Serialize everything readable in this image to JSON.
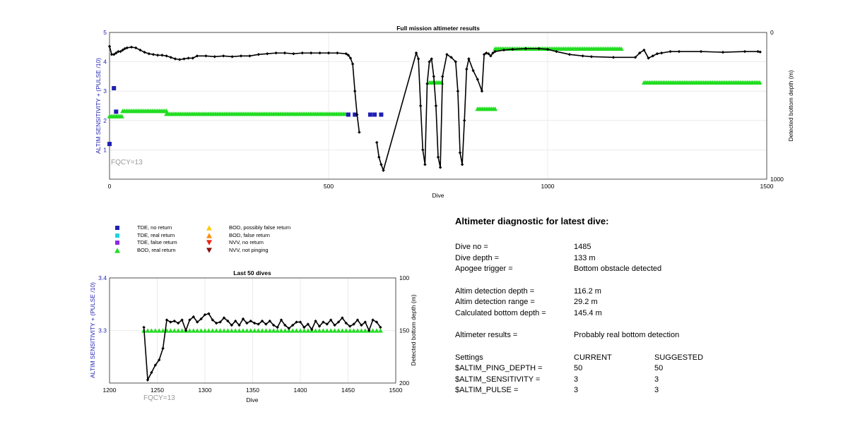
{
  "chart_data": [
    {
      "type": "scatter",
      "title": "Full mission altimeter results",
      "xlabel": "Dive",
      "ylabel": "ALTIM SENSITIVITY + (PULSE /10)",
      "y2label": "Detected bottom depth (m)",
      "xlim": [
        0,
        1500
      ],
      "ylim": [
        0,
        5
      ],
      "y2lim": [
        0,
        1000
      ],
      "y2_reversed": true,
      "xticks": [
        "0",
        "500",
        "1000",
        "1500"
      ],
      "yticks": [
        "1",
        "2",
        "3",
        "4",
        "5"
      ],
      "y2ticks": [
        "0",
        "1000"
      ],
      "grid": true,
      "annotation": "FQCY=13",
      "depth_series": {
        "name": "Detected bottom depth",
        "x": [
          0,
          5,
          10,
          15,
          20,
          25,
          30,
          35,
          40,
          50,
          60,
          70,
          80,
          90,
          100,
          110,
          120,
          130,
          140,
          150,
          160,
          170,
          180,
          190,
          200,
          220,
          240,
          260,
          280,
          300,
          320,
          340,
          360,
          380,
          400,
          420,
          440,
          460,
          480,
          500,
          520,
          540,
          545,
          550,
          555,
          560,
          565,
          570
        ],
        "y": [
          95,
          150,
          150,
          140,
          130,
          130,
          120,
          110,
          105,
          100,
          105,
          120,
          135,
          145,
          150,
          155,
          155,
          160,
          170,
          180,
          185,
          180,
          175,
          175,
          160,
          160,
          165,
          160,
          165,
          160,
          160,
          150,
          145,
          140,
          140,
          145,
          140,
          140,
          140,
          140,
          140,
          145,
          155,
          175,
          215,
          400,
          560,
          680
        ]
      },
      "depth_series_2": {
        "x": [
          610,
          615,
          620,
          625,
          700,
          705,
          710,
          715,
          720,
          725,
          730,
          735,
          740,
          745,
          750,
          755,
          760,
          770,
          780,
          790,
          795,
          800,
          805,
          810,
          815,
          820,
          830,
          840,
          850,
          855,
          860,
          865,
          870,
          875,
          880,
          900,
          920,
          950,
          980,
          1000,
          1020,
          1050,
          1080,
          1100,
          1150,
          1200,
          1210,
          1220,
          1230,
          1240,
          1250,
          1260,
          1280,
          1300,
          1350,
          1400,
          1450,
          1480,
          1485
        ],
        "y": [
          750,
          850,
          900,
          940,
          140,
          180,
          500,
          800,
          900,
          350,
          200,
          180,
          300,
          500,
          850,
          920,
          300,
          150,
          170,
          200,
          400,
          820,
          900,
          600,
          250,
          180,
          260,
          320,
          400,
          150,
          140,
          145,
          160,
          140,
          130,
          120,
          115,
          110,
          110,
          115,
          130,
          150,
          160,
          165,
          170,
          170,
          140,
          120,
          175,
          160,
          145,
          140,
          130,
          130,
          130,
          135,
          130,
          130,
          133
        ]
      },
      "bod_real_bands": [
        {
          "x_start": 0,
          "x_end": 30,
          "y": 2.15
        },
        {
          "x_start": 30,
          "x_end": 130,
          "y": 2.33
        },
        {
          "x_start": 130,
          "x_end": 540,
          "y": 2.23
        },
        {
          "x_start": 730,
          "x_end": 760,
          "y": 3.3
        },
        {
          "x_start": 840,
          "x_end": 880,
          "y": 2.4
        },
        {
          "x_start": 880,
          "x_end": 1170,
          "y": 4.45
        },
        {
          "x_start": 1220,
          "x_end": 1485,
          "y": 3.3
        }
      ],
      "tde_no_return": [
        {
          "x": 10,
          "y": 3.1
        },
        {
          "x": 15,
          "y": 2.3
        },
        {
          "x": 0,
          "y": 1.2
        },
        {
          "x": 545,
          "y": 2.2
        },
        {
          "x": 560,
          "y": 2.2
        },
        {
          "x": 595,
          "y": 2.2
        },
        {
          "x": 605,
          "y": 2.2
        },
        {
          "x": 620,
          "y": 2.2
        }
      ]
    },
    {
      "type": "line",
      "title": "Last 50 dives",
      "xlabel": "Dive",
      "ylabel": "ALTIM SENSITIVITY + (PULSE /10)",
      "y2label": "Detected bottom depth (m)",
      "xlim": [
        1200,
        1500
      ],
      "ylim": [
        3.2,
        3.4
      ],
      "y2lim": [
        100,
        200
      ],
      "y2_reversed": true,
      "xticks": [
        "1200",
        "1250",
        "1300",
        "1350",
        "1400",
        "1450",
        "1500"
      ],
      "yticks": [
        "3.3",
        "3.4"
      ],
      "y2ticks": [
        "100",
        "150",
        "200"
      ],
      "grid": true,
      "annotation": "FQCY=13",
      "depth": {
        "x": [
          1236,
          1240,
          1244,
          1248,
          1252,
          1256,
          1260,
          1264,
          1268,
          1272,
          1276,
          1280,
          1284,
          1288,
          1292,
          1296,
          1300,
          1304,
          1308,
          1312,
          1316,
          1320,
          1324,
          1328,
          1332,
          1336,
          1340,
          1344,
          1348,
          1352,
          1356,
          1360,
          1364,
          1368,
          1372,
          1376,
          1380,
          1384,
          1388,
          1392,
          1396,
          1400,
          1404,
          1408,
          1412,
          1416,
          1420,
          1424,
          1428,
          1432,
          1436,
          1440,
          1444,
          1448,
          1452,
          1456,
          1460,
          1464,
          1468,
          1472,
          1476,
          1480,
          1484
        ],
        "y": [
          147,
          197,
          190,
          183,
          178,
          167,
          140,
          142,
          141,
          143,
          140,
          150,
          140,
          137,
          142,
          139,
          135,
          134,
          140,
          143,
          142,
          138,
          141,
          145,
          141,
          145,
          139,
          143,
          141,
          143,
          144,
          141,
          144,
          141,
          145,
          147,
          140,
          145,
          148,
          145,
          142,
          142,
          147,
          144,
          149,
          141,
          146,
          142,
          144,
          140,
          145,
          142,
          138,
          143,
          146,
          144,
          140,
          145,
          142,
          150,
          140,
          142,
          147
        ]
      },
      "bod_real": {
        "x_start": 1236,
        "x_end": 1484,
        "step": 4,
        "y": 3.3
      },
      "bod_possibly_false": [
        {
          "x": 1430,
          "y": 3.3
        }
      ]
    }
  ],
  "legend": {
    "items": [
      {
        "label": "TDE, no return",
        "shape": "square",
        "color": "#1f1fb3"
      },
      {
        "label": "TDE, real return",
        "shape": "square",
        "color": "#22d3e0"
      },
      {
        "label": "TDE, false return",
        "shape": "square",
        "color": "#8a2be2"
      },
      {
        "label": "BOD, real return",
        "shape": "triangle-up",
        "color": "#22dd22"
      },
      {
        "label": "BOD, possibly false return",
        "shape": "triangle-up",
        "color": "#ffcc00"
      },
      {
        "label": "BOD, false return",
        "shape": "triangle-up",
        "color": "#ff8c00"
      },
      {
        "label": "NVV, no return",
        "shape": "triangle-down",
        "color": "#ee2211"
      },
      {
        "label": "NVV, not pinging",
        "shape": "triangle-down",
        "color": "#8b1010"
      }
    ]
  },
  "diagnostic": {
    "title": "Altimeter diagnostic for latest dive:",
    "dive_no_label": "Dive no =",
    "dive_no_value": "1485",
    "dive_depth_label": "Dive depth =",
    "dive_depth_value": "133 m",
    "apogee_label": "Apogee trigger =",
    "apogee_value": "Bottom obstacle detected",
    "altim_depth_label": "Altim detection depth =",
    "altim_depth_value": "116.2 m",
    "altim_range_label": "Altim detection range =",
    "altim_range_value": "29.2 m",
    "calc_depth_label": "Calculated bottom depth =",
    "calc_depth_value": "145.4 m",
    "results_label": "Altimeter results =",
    "results_value": "Probably real bottom detection",
    "settings_label": "Settings",
    "current_label": "CURRENT",
    "suggested_label": "SUGGESTED",
    "ping_depth_label": "$ALTIM_PING_DEPTH =",
    "ping_depth_current": "50",
    "ping_depth_suggested": "50",
    "sensitivity_label": "$ALTIM_SENSITIVITY =",
    "sensitivity_current": "3",
    "sensitivity_suggested": "3",
    "pulse_label": "$ALTIM_PULSE =",
    "pulse_current": "3",
    "pulse_suggested": "3"
  },
  "colors": {
    "axis_left": "#1f1fb3",
    "grid": "#e6e6e6",
    "fqcy": "#999999"
  }
}
